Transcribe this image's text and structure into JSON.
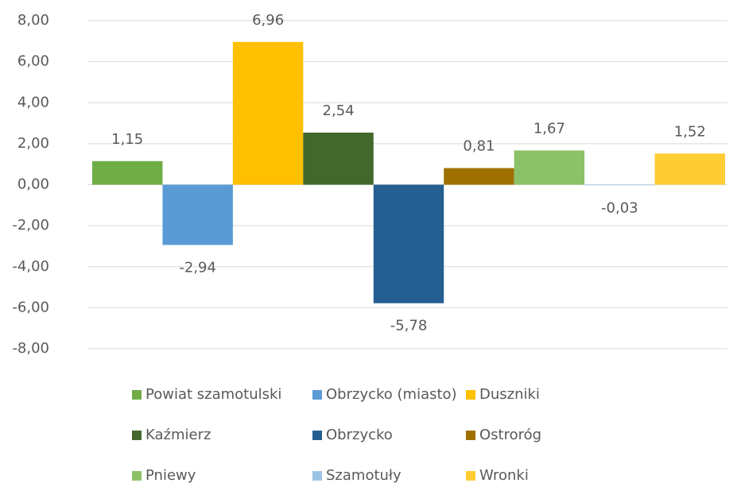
{
  "chart_data": {
    "type": "bar",
    "categories": [
      null
    ],
    "series": [
      {
        "name": "Powiat szamotulski",
        "color": "#70ad47",
        "values": [
          1.15
        ],
        "value_labels": [
          "1,15"
        ]
      },
      {
        "name": "Obrzycko (miasto)",
        "color": "#5b9bd5",
        "values": [
          -2.94
        ],
        "value_labels": [
          "-2,94"
        ]
      },
      {
        "name": "Duszniki",
        "color": "#ffc000",
        "values": [
          6.96
        ],
        "value_labels": [
          "6,96"
        ]
      },
      {
        "name": "Kaźmierz",
        "color": "#43682b",
        "values": [
          2.54
        ],
        "value_labels": [
          "2,54"
        ]
      },
      {
        "name": "Obrzycko",
        "color": "#255e91",
        "values": [
          -5.78
        ],
        "value_labels": [
          "-5,78"
        ]
      },
      {
        "name": "Ostroróg",
        "color": "#9e7000",
        "values": [
          0.81
        ],
        "value_labels": [
          "0,81"
        ]
      },
      {
        "name": "Pniewy",
        "color": "#8cc168",
        "values": [
          1.67
        ],
        "value_labels": [
          "1,67"
        ]
      },
      {
        "name": "Szamotuły",
        "color": "#9dc3e6",
        "values": [
          -0.03
        ],
        "value_labels": [
          "-0,03"
        ]
      },
      {
        "name": "Wronki",
        "color": "#ffcd33",
        "values": [
          1.52
        ],
        "value_labels": [
          "1,52"
        ]
      }
    ],
    "ylim": [
      -8,
      8
    ],
    "yticks": [
      {
        "value": -8,
        "label": "-8,00"
      },
      {
        "value": -6,
        "label": "-6,00"
      },
      {
        "value": -4,
        "label": "-4,00"
      },
      {
        "value": -2,
        "label": "-2,00"
      },
      {
        "value": 0,
        "label": "0,00"
      },
      {
        "value": 2,
        "label": "2,00"
      },
      {
        "value": 4,
        "label": "4,00"
      },
      {
        "value": 6,
        "label": "6,00"
      },
      {
        "value": 8,
        "label": "8,00"
      }
    ],
    "grid": true,
    "legend": "bottom"
  }
}
